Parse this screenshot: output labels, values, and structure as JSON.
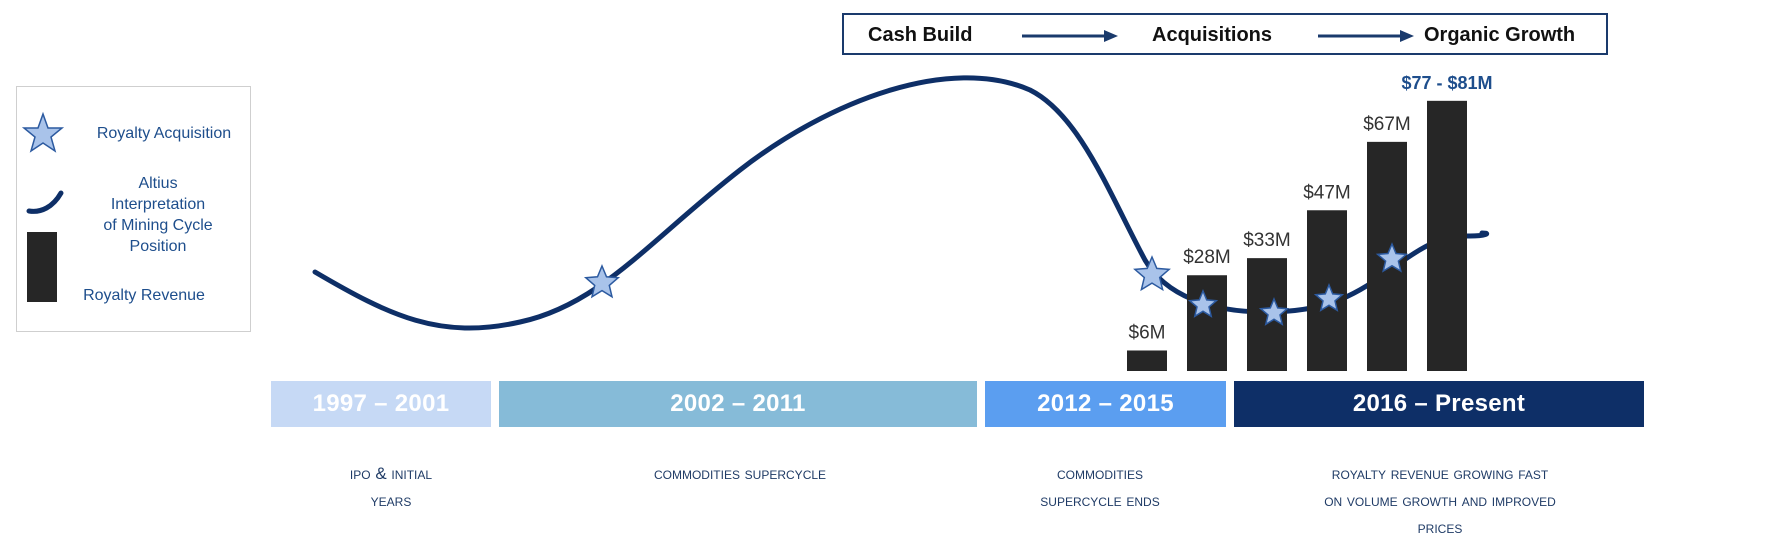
{
  "strategy": {
    "step1": "Cash Build",
    "step2": "Acquisitions",
    "step3": "Organic Growth"
  },
  "legend": {
    "acquisition": "Royalty Acquisition",
    "cycle_line1": "Altius",
    "cycle_line2": "Interpretation",
    "cycle_line3": "of Mining Cycle",
    "cycle_line4": "Position",
    "revenue": "Royalty Revenue"
  },
  "periods": [
    {
      "label": "1997 – 2001",
      "color": "#c6d9f5",
      "desc1": "IPO & Initial",
      "desc2": "Years",
      "desc3": ""
    },
    {
      "label": "2002 – 2011",
      "color": "#86bbd8",
      "desc1": "Commodities supercycle",
      "desc2": "",
      "desc3": ""
    },
    {
      "label": "2012 – 2015",
      "color": "#5b9ef0",
      "desc1": "Commodities",
      "desc2": "supercycle ends",
      "desc3": ""
    },
    {
      "label": "2016 – Present",
      "color": "#0e2f67",
      "desc1": "Royalty revenue growing fast",
      "desc2": "on volume growth and improved",
      "desc3": "prices"
    }
  ],
  "chart_data": {
    "type": "bar",
    "series": [
      {
        "name": "Royalty Revenue",
        "values": [
          6,
          28,
          33,
          47,
          67,
          79
        ]
      }
    ],
    "data_labels": [
      "$6M",
      "$28M",
      "$33M",
      "$47M",
      "$67M",
      "$77 - $81M"
    ],
    "unit": "$M",
    "highlight_label_color": "#1e4e8c",
    "bar_color": "#262626",
    "curve_color": "#0e2f67",
    "star_color": "#a9c3ea",
    "star_stroke": "#2c5aa0"
  }
}
